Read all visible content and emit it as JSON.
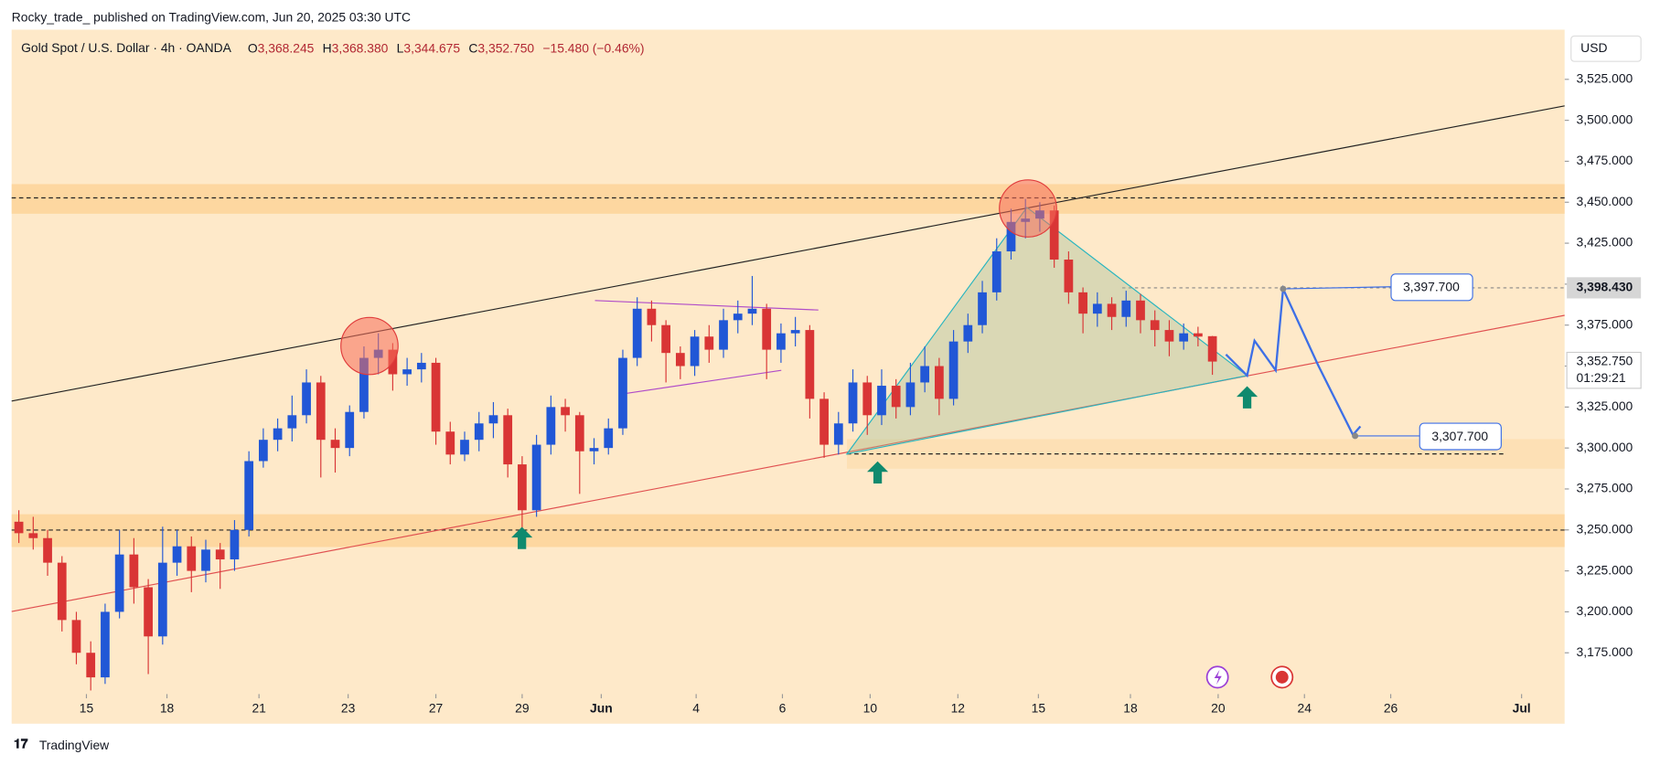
{
  "header": {
    "publisher": "Rocky_trade_ published on TradingView.com, Jun 20, 2025 03:30 UTC",
    "symbol": "Gold Spot / U.S. Dollar · 4h · OANDA",
    "ohlc": [
      {
        "label": "O",
        "text": "3,368.245"
      },
      {
        "label": "H",
        "text": "3,368.380"
      },
      {
        "label": "L",
        "text": "3,344.675"
      },
      {
        "label": "C",
        "text": "3,352.750"
      }
    ],
    "change": "−15.480 (−0.46%)",
    "currency": "USD"
  },
  "chart_data": {
    "type": "candlestick",
    "series": [
      {
        "up_color": "#2157d6",
        "down_color": "#d93535",
        "open": [
          3255,
          3248,
          3245,
          3230,
          3195,
          3175,
          3160,
          3200,
          3235,
          3215,
          3185,
          3230,
          3240,
          3225,
          3238,
          3232,
          3250,
          3292,
          3305,
          3312,
          3320,
          3340,
          3305,
          3300,
          3322,
          3355,
          3360,
          3345,
          3348,
          3352,
          3310,
          3296,
          3305,
          3315,
          3320,
          3290,
          3262,
          3302,
          3325,
          3320,
          3298,
          3300,
          3312,
          3355,
          3385,
          3375,
          3358,
          3350,
          3368,
          3360,
          3378,
          3382,
          3385,
          3360,
          3370,
          3372,
          3330,
          3302,
          3315,
          3340,
          3320,
          3338,
          3325,
          3340,
          3350,
          3330,
          3365,
          3375,
          3395,
          3420,
          3438,
          3440,
          3445,
          3415,
          3395,
          3382,
          3388,
          3380,
          3390,
          3378,
          3372,
          3365,
          3370,
          3368.245
        ],
        "high": [
          3262,
          3258,
          3250,
          3234,
          3200,
          3182,
          3205,
          3250,
          3245,
          3220,
          3252,
          3250,
          3246,
          3244,
          3242,
          3256,
          3298,
          3312,
          3318,
          3332,
          3348,
          3344,
          3312,
          3326,
          3362,
          3370,
          3364,
          3355,
          3358,
          3355,
          3316,
          3310,
          3322,
          3328,
          3324,
          3295,
          3308,
          3332,
          3330,
          3322,
          3306,
          3318,
          3360,
          3392,
          3390,
          3378,
          3362,
          3372,
          3375,
          3385,
          3390,
          3405,
          3388,
          3376,
          3380,
          3375,
          3334,
          3322,
          3348,
          3344,
          3348,
          3342,
          3352,
          3362,
          3355,
          3372,
          3382,
          3402,
          3428,
          3446,
          3452,
          3450,
          3448,
          3420,
          3398,
          3395,
          3392,
          3396,
          3394,
          3384,
          3378,
          3376,
          3374,
          3368.38
        ],
        "low": [
          3242,
          3238,
          3222,
          3188,
          3168,
          3152,
          3156,
          3196,
          3205,
          3162,
          3180,
          3222,
          3212,
          3218,
          3214,
          3225,
          3246,
          3288,
          3298,
          3304,
          3315,
          3282,
          3285,
          3295,
          3318,
          3345,
          3335,
          3338,
          3340,
          3302,
          3290,
          3292,
          3298,
          3306,
          3282,
          3248,
          3258,
          3296,
          3310,
          3272,
          3290,
          3296,
          3308,
          3350,
          3365,
          3340,
          3342,
          3344,
          3352,
          3355,
          3370,
          3375,
          3342,
          3352,
          3362,
          3318,
          3294,
          3296,
          3310,
          3308,
          3314,
          3318,
          3320,
          3334,
          3320,
          3326,
          3358,
          3370,
          3390,
          3415,
          3428,
          3432,
          3410,
          3388,
          3370,
          3374,
          3372,
          3374,
          3370,
          3362,
          3356,
          3360,
          3362,
          3344.675
        ],
        "close": [
          3248,
          3245,
          3230,
          3195,
          3175,
          3160,
          3200,
          3235,
          3215,
          3185,
          3230,
          3240,
          3225,
          3238,
          3232,
          3250,
          3292,
          3305,
          3312,
          3320,
          3340,
          3305,
          3300,
          3322,
          3355,
          3360,
          3345,
          3348,
          3352,
          3310,
          3296,
          3305,
          3315,
          3320,
          3290,
          3262,
          3302,
          3325,
          3320,
          3298,
          3300,
          3312,
          3355,
          3385,
          3375,
          3358,
          3350,
          3368,
          3360,
          3378,
          3382,
          3385,
          3360,
          3370,
          3372,
          3330,
          3302,
          3315,
          3340,
          3320,
          3338,
          3325,
          3340,
          3350,
          3330,
          3365,
          3375,
          3395,
          3420,
          3438,
          3440,
          3445,
          3415,
          3395,
          3382,
          3388,
          3380,
          3390,
          3378,
          3372,
          3365,
          3370,
          3368,
          3352.75
        ]
      }
    ],
    "xlim": [
      -0.5,
      107.5
    ],
    "xticks": [
      {
        "value": 4.7,
        "label": "15"
      },
      {
        "value": 10.3,
        "label": "18"
      },
      {
        "value": 16.7,
        "label": "21"
      },
      {
        "value": 22.9,
        "label": "23"
      },
      {
        "value": 29.0,
        "label": "27"
      },
      {
        "value": 35.0,
        "label": "29"
      },
      {
        "value": 40.5,
        "label": "Jun"
      },
      {
        "value": 47.1,
        "label": "4"
      },
      {
        "value": 53.1,
        "label": "6"
      },
      {
        "value": 59.2,
        "label": "10"
      },
      {
        "value": 65.3,
        "label": "12"
      },
      {
        "value": 70.9,
        "label": "15"
      },
      {
        "value": 77.3,
        "label": "18"
      },
      {
        "value": 83.4,
        "label": "20"
      },
      {
        "value": 89.4,
        "label": "24"
      },
      {
        "value": 95.4,
        "label": "26"
      },
      {
        "value": 104.5,
        "label": "Jul"
      }
    ],
    "ylim": [
      3150,
      3555
    ],
    "yticks": [
      {
        "value": 3175,
        "label": "3,175.000"
      },
      {
        "value": 3200,
        "label": "3,200.000"
      },
      {
        "value": 3225,
        "label": "3,225.000"
      },
      {
        "value": 3250,
        "label": "3,250.000"
      },
      {
        "value": 3275,
        "label": "3,275.000"
      },
      {
        "value": 3300,
        "label": "3,300.000"
      },
      {
        "value": 3325,
        "label": "3,325.000"
      },
      {
        "value": 3350,
        "label": "3,350.000"
      },
      {
        "value": 3375,
        "label": "3,375.000"
      },
      {
        "value": 3400,
        "label": "3,400.000"
      },
      {
        "value": 3425,
        "label": "3,425.000"
      },
      {
        "value": 3450,
        "label": "3,450.000"
      },
      {
        "value": 3475,
        "label": "3,475.000"
      },
      {
        "value": 3500,
        "label": "3,500.000"
      },
      {
        "value": 3525,
        "label": "3,525.000"
      }
    ],
    "annotations": [
      "3,397.700",
      "3,307.700"
    ],
    "price_tags": {
      "mark": "3,398.430",
      "last": "3,352.750",
      "countdown": "01:29:21"
    },
    "brand": "TradingView"
  }
}
